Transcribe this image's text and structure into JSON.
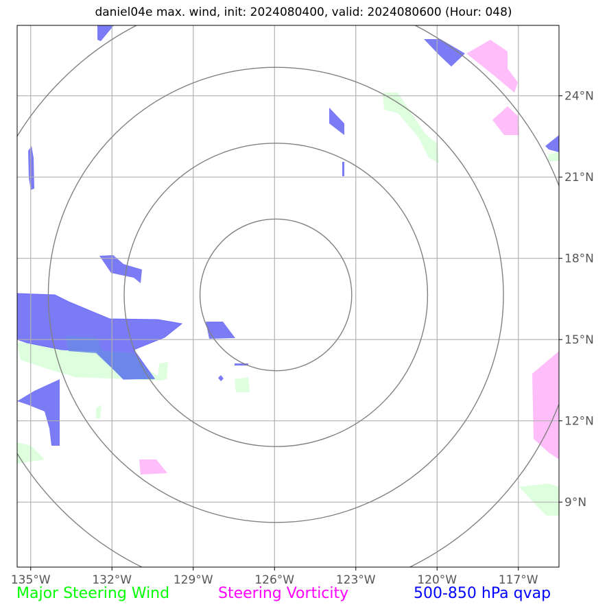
{
  "title": "daniel04e max. wind, init: 2024080400, valid: 2024080600 (Hour: 048)",
  "map": {
    "lon_range": [
      -135.5,
      -115.5
    ],
    "lat_range": [
      6.6,
      26.6
    ],
    "lon_ticks": [
      {
        "value": -135,
        "label": "135°W"
      },
      {
        "value": -132,
        "label": "132°W"
      },
      {
        "value": -129,
        "label": "129°W"
      },
      {
        "value": -126,
        "label": "126°W"
      },
      {
        "value": -123,
        "label": "123°W"
      },
      {
        "value": -120,
        "label": "120°W"
      },
      {
        "value": -117,
        "label": "117°W"
      }
    ],
    "lat_ticks": [
      {
        "value": 24,
        "label": "24°N"
      },
      {
        "value": 21,
        "label": "21°N"
      },
      {
        "value": 18,
        "label": "18°N"
      },
      {
        "value": 15,
        "label": "15°N"
      },
      {
        "value": 12,
        "label": "12°N"
      },
      {
        "value": 9,
        "label": "9°N"
      }
    ],
    "range_rings": {
      "center_lon": -125.95,
      "center_lat": 16.65,
      "radii_deg": [
        2.8,
        5.6,
        8.4,
        11.2
      ]
    }
  },
  "legend": {
    "wind": {
      "label": "Major Steering Wind",
      "color": "#00ff00"
    },
    "vorticity": {
      "label": "Steering Vorticity",
      "color": "#ff00ff"
    },
    "qvap": {
      "label": "500-850 hPa qvap",
      "color": "#0000ff"
    }
  },
  "colors": {
    "qvap_fill": "#7b7bf6",
    "vorticity_fill": "#ffbdfa",
    "wind_fill": "#ddffdd",
    "grid": "#b0b0b0",
    "rings": "#808080"
  }
}
